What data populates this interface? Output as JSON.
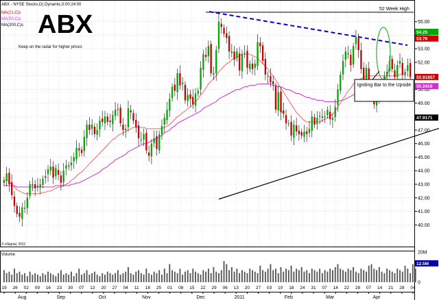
{
  "header": {
    "symbol_line": "ABX - NYSE Stocks,D) Dynamic,0:00:24:00",
    "ma21_label": "MA(21,C)s",
    "ma50_label": "MA(50,C)s",
    "ma200_label": "MA(200,C)s",
    "ticker": "ABX",
    "note": "Keep on the radar for higher prices",
    "copyright": "© eSignal, 2011"
  },
  "colors": {
    "up": "#00a800",
    "down": "#cc0000",
    "ma21": "#ff6060",
    "ma50": "#cc33cc",
    "ma200": "#000000",
    "trendline": "#0000cc",
    "highline": "#000000",
    "ellipse": "#33aa33",
    "volume": "#555555"
  },
  "chart_data": {
    "type": "candlestick",
    "title": "ABX",
    "ylim": [
      38.5,
      56.5
    ],
    "y_ticks": [
      40.0,
      41.0,
      42.0,
      43.0,
      44.0,
      45.0,
      46.0,
      47.0,
      48.0,
      49.0,
      50.0,
      51.0,
      52.0,
      53.0,
      54.0,
      55.0
    ],
    "y_tick_labels": [
      "40.00",
      "41.00",
      "42.00",
      "43.00",
      "44.00",
      "45.00",
      "46.00",
      "47.00",
      "48.00",
      "49.00",
      "50.00",
      "51.00",
      "52.00",
      "53.00",
      "54.00",
      "55.00"
    ],
    "price_tags": [
      {
        "label": "54.25",
        "value": 54.25,
        "color": "#00a800"
      },
      {
        "label": "53.76",
        "value": 53.76,
        "color": "#cc0000"
      },
      {
        "label": "50.91857",
        "value": 50.92,
        "color": "#cc0000"
      },
      {
        "label": "50.2418",
        "value": 50.24,
        "color": "#cc33cc"
      },
      {
        "label": "47.9171",
        "value": 47.92,
        "color": "#000000"
      }
    ],
    "x_day_labels": [
      "19",
      "26",
      "02",
      "09",
      "16",
      "23",
      "30",
      "07",
      "13",
      "20",
      "27",
      "04",
      "11",
      "18",
      "25",
      "01",
      "08",
      "15",
      "22",
      "29",
      "06",
      "13",
      "20",
      "27",
      "03",
      "10",
      "18",
      "24",
      "31",
      "07",
      "14",
      "22",
      "28",
      "07",
      "14",
      "21",
      "28",
      "04"
    ],
    "month_labels": [
      "Aug",
      "Sep",
      "Oct",
      "Nov",
      "Dec",
      "2011",
      "Feb",
      "Mar",
      "Apr"
    ],
    "month_positions": [
      7,
      22,
      38,
      55,
      76,
      91,
      110,
      126,
      144
    ],
    "closes": [
      43.3,
      43.8,
      43.0,
      42.2,
      41.4,
      40.8,
      40.6,
      41.3,
      41.2,
      42.0,
      43.0,
      43.0,
      42.7,
      42.9,
      43.0,
      43.4,
      43.6,
      44.1,
      44.3,
      43.5,
      44.2,
      43.7,
      43.1,
      44.0,
      44.4,
      44.4,
      44.6,
      45.0,
      45.7,
      45.5,
      45.3,
      46.5,
      47.4,
      47.0,
      47.4,
      46.7,
      47.0,
      47.7,
      47.6,
      48.0,
      47.6,
      47.6,
      48.1,
      48.5,
      48.5,
      47.5,
      47.0,
      47.1,
      48.6,
      48.3,
      47.7,
      47.2,
      46.4,
      46.3,
      46.7,
      45.5,
      45.1,
      46.0,
      46.4,
      45.6,
      46.7,
      47.3,
      47.9,
      48.5,
      49.3,
      50.2,
      49.9,
      51.2,
      50.3,
      50.5,
      49.2,
      49.6,
      49.3,
      48.9,
      49.7,
      49.9,
      51.6,
      52.6,
      52.4,
      53.2,
      51.2,
      51.2,
      52.9,
      55.0,
      54.6,
      54.1,
      53.8,
      52.8,
      52.8,
      52.2,
      52.8,
      51.4,
      52.6,
      52.7,
      51.6,
      51.9,
      51.5,
      51.9,
      53.5,
      53.2,
      52.1,
      51.1,
      51.0,
      50.5,
      50.4,
      48.5,
      49.8,
      48.3,
      48.2,
      47.5,
      47.5,
      46.6,
      47.4,
      46.9,
      46.7,
      46.6,
      46.9,
      46.7,
      47.1,
      48.0,
      47.4,
      47.9,
      48.0,
      48.0,
      48.0,
      48.5,
      47.8,
      47.9,
      48.7,
      50.0,
      51.1,
      52.1,
      52.8,
      52.6,
      51.8,
      53.2,
      53.9,
      52.9,
      51.5,
      50.3,
      51.6,
      50.2,
      49.8,
      48.9,
      49.2,
      50.0,
      50.2,
      51.0,
      51.3,
      52.1,
      51.5,
      50.9,
      51.8,
      52.1,
      51.1,
      51.3,
      51.8,
      50.9
    ],
    "ma21": [
      43.3,
      43.3,
      43.2,
      43.0,
      42.8,
      42.6,
      42.5,
      42.4,
      42.3,
      42.3,
      42.3,
      42.3,
      42.3,
      42.3,
      42.3,
      42.4,
      42.4,
      42.5,
      42.5,
      42.6,
      42.7,
      42.8,
      42.8,
      42.9,
      43.0,
      43.1,
      43.3,
      43.4,
      43.6,
      43.8,
      43.9,
      44.1,
      44.3,
      44.5,
      44.7,
      44.9,
      45.1,
      45.3,
      45.5,
      45.7,
      45.9,
      46.1,
      46.3,
      46.4,
      46.6,
      46.7,
      46.8,
      46.9,
      47.0,
      47.1,
      47.2,
      47.2,
      47.2,
      47.2,
      47.2,
      47.1,
      47.1,
      47.1,
      47.1,
      47.1,
      47.1,
      47.1,
      47.2,
      47.3,
      47.4,
      47.6,
      47.8,
      48.0,
      48.1,
      48.3,
      48.4,
      48.6,
      48.7,
      48.9,
      49.1,
      49.3,
      49.6,
      49.8,
      50.1,
      50.4,
      50.6,
      50.8,
      51.0,
      51.3,
      51.5,
      51.7,
      51.9,
      52.0,
      52.2,
      52.3,
      52.4,
      52.5,
      52.6,
      52.6,
      52.6,
      52.6,
      52.5,
      52.4,
      52.3,
      52.1,
      51.9,
      51.7,
      51.5,
      51.2,
      51.0,
      50.7,
      50.4,
      50.1,
      49.8,
      49.5,
      49.2,
      48.9,
      48.6,
      48.3,
      48.1,
      47.9,
      47.7,
      47.6,
      47.6,
      47.6,
      47.6,
      47.6,
      47.6,
      47.7,
      47.8,
      47.9,
      48.0,
      48.2,
      48.4,
      48.7,
      49.0,
      49.3,
      49.6,
      49.9,
      50.1,
      50.4,
      50.6,
      50.7,
      50.8,
      50.9,
      51.0,
      51.0,
      51.0,
      51.0,
      51.0,
      51.0,
      51.0,
      51.0,
      51.0,
      51.0,
      51.0,
      51.0,
      51.0,
      51.1,
      51.1,
      51.1
    ],
    "ma50": [
      42.9,
      42.9,
      42.9,
      42.9,
      42.9,
      42.8,
      42.8,
      42.8,
      42.8,
      42.8,
      42.8,
      42.8,
      42.8,
      42.8,
      42.8,
      42.8,
      42.8,
      42.8,
      42.8,
      42.8,
      42.9,
      42.9,
      42.9,
      42.9,
      42.9,
      42.9,
      43.0,
      43.0,
      43.1,
      43.1,
      43.2,
      43.3,
      43.4,
      43.5,
      43.6,
      43.7,
      43.8,
      43.9,
      44.1,
      44.2,
      44.3,
      44.5,
      44.6,
      44.8,
      44.9,
      45.0,
      45.1,
      45.2,
      45.4,
      45.5,
      45.6,
      45.7,
      45.8,
      45.9,
      46.0,
      46.0,
      46.1,
      46.2,
      46.3,
      46.4,
      46.5,
      46.6,
      46.8,
      46.9,
      47.0,
      47.2,
      47.3,
      47.5,
      47.6,
      47.7,
      47.8,
      47.9,
      48.0,
      48.1,
      48.2,
      48.3,
      48.4,
      48.6,
      48.7,
      48.8,
      48.9,
      49.0,
      49.1,
      49.3,
      49.4,
      49.5,
      49.6,
      49.7,
      49.8,
      49.9,
      50.0,
      50.0,
      50.1,
      50.2,
      50.2,
      50.3,
      50.3,
      50.3,
      50.4,
      50.4,
      50.4,
      50.4,
      50.4,
      50.4,
      50.3,
      50.3,
      50.2,
      50.2,
      50.1,
      50.0,
      50.0,
      49.9,
      49.8,
      49.7,
      49.7,
      49.6,
      49.5,
      49.4,
      49.4,
      49.3,
      49.3,
      49.2,
      49.2,
      49.2,
      49.1,
      49.1,
      49.1,
      49.1,
      49.1,
      49.1,
      49.2,
      49.2,
      49.3,
      49.4,
      49.5,
      49.6,
      49.7,
      49.7,
      49.8,
      49.8,
      49.9,
      49.9,
      49.9,
      50.0,
      50.0,
      50.0,
      50.1,
      50.1,
      50.1,
      50.1,
      50.2,
      50.2,
      50.2,
      50.2,
      50.2,
      50.2,
      50.2,
      50.2
    ],
    "ma200_start": [
      83,
      41.9
    ],
    "ma200_end": [
      181,
      47.92
    ],
    "annotations": {
      "high_label": "52 Week High",
      "high_value": 55.7,
      "callout": "Igniting Bar to the Upside"
    },
    "volume": {
      "label": "Volume",
      "ticks": [
        "20M",
        "12.5M",
        "0"
      ],
      "values": [
        8,
        6,
        7,
        5,
        9,
        6,
        7,
        5,
        6,
        4,
        7,
        5,
        6,
        5,
        4,
        6,
        5,
        7,
        6,
        5,
        4,
        6,
        8,
        5,
        6,
        5,
        7,
        4,
        6,
        9,
        5,
        6,
        8,
        5,
        6,
        7,
        5,
        4,
        6,
        5,
        7,
        6,
        5,
        6,
        8,
        5,
        6,
        7,
        10,
        6,
        5,
        7,
        8,
        6,
        5,
        9,
        6,
        5,
        7,
        6,
        8,
        5,
        9,
        6,
        12,
        8,
        7,
        6,
        9,
        5,
        7,
        8,
        6,
        9,
        7,
        6,
        5,
        8,
        7,
        9,
        6,
        10,
        7,
        6,
        8,
        14,
        12,
        8,
        10,
        7,
        9,
        6,
        8,
        7,
        6,
        9,
        8,
        7,
        6,
        11,
        8,
        7,
        9,
        12,
        8,
        9,
        6,
        10,
        7,
        9,
        8,
        11,
        7,
        9,
        8,
        10,
        7,
        8,
        6,
        9,
        8,
        7,
        9,
        6,
        8,
        7,
        9,
        8,
        10,
        12,
        9,
        8,
        7,
        9,
        8,
        10,
        7,
        6,
        9,
        8,
        7,
        11,
        12,
        9,
        8,
        10,
        7,
        6,
        9,
        8,
        7,
        6,
        9,
        8,
        7,
        11,
        9,
        6,
        12,
        9
      ]
    }
  }
}
